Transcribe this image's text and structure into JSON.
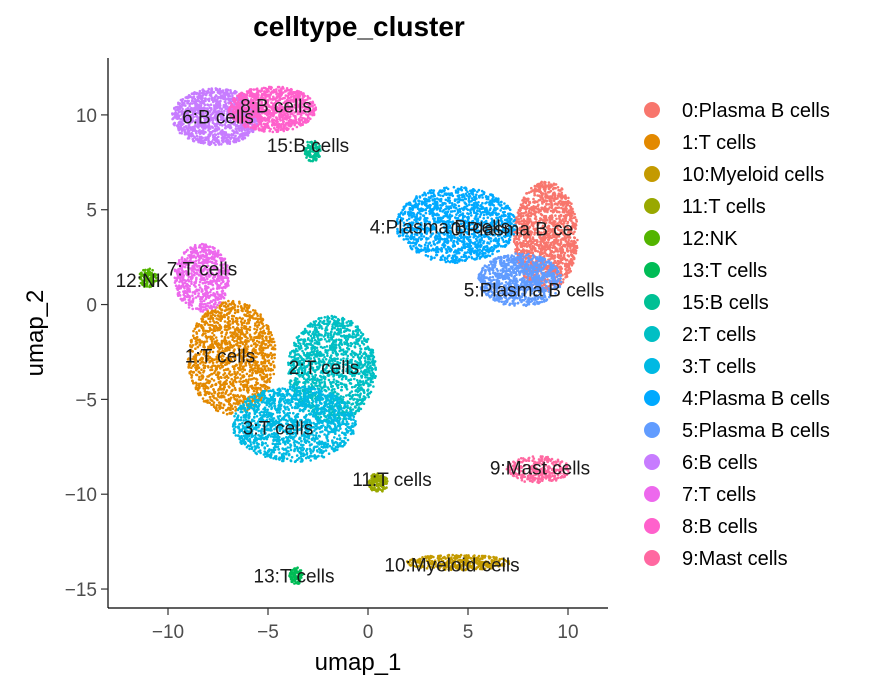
{
  "chart_data": {
    "type": "scatter",
    "title": "celltype_cluster",
    "xlabel": "umap_1",
    "ylabel": "umap_2",
    "xlim": [
      -13,
      12
    ],
    "ylim": [
      -16,
      13
    ],
    "x_ticks": [
      -10,
      -5,
      0,
      5,
      10
    ],
    "y_ticks": [
      10,
      5,
      0,
      -5,
      -10,
      -15
    ],
    "x_tick_labels": [
      "−10",
      "−5",
      "0",
      "5",
      "10"
    ],
    "y_tick_labels": [
      "10",
      "5",
      "0",
      "−5",
      "−10",
      "−15"
    ],
    "grid": false,
    "legend_position": "right",
    "series": [
      {
        "name": "0:Plasma B cells",
        "color": "#F8766D",
        "cx": 8.9,
        "cy": 3.6,
        "rx": 1.6,
        "ry": 2.9,
        "n": 1400,
        "label": "0:Plasma B ce",
        "lx": 7.2,
        "ly": 3.9
      },
      {
        "name": "1:T cells",
        "color": "#E38900",
        "cx": -6.8,
        "cy": -2.8,
        "rx": 2.2,
        "ry": 3.0,
        "n": 1400,
        "label": "1:T cells",
        "lx": -7.4,
        "ly": -2.8
      },
      {
        "name": "10:Myeloid cells",
        "color": "#C49A00",
        "cx": 4.5,
        "cy": -13.6,
        "rx": 2.6,
        "ry": 0.4,
        "n": 350,
        "label": "10:Myeloid cells",
        "lx": 4.2,
        "ly": -13.8
      },
      {
        "name": "11:T cells",
        "color": "#99A800",
        "cx": 0.5,
        "cy": -9.4,
        "rx": 0.5,
        "ry": 0.5,
        "n": 140,
        "label": "11:T cells",
        "lx": 1.2,
        "ly": -9.3
      },
      {
        "name": "12:NK",
        "color": "#53B400",
        "cx": -11.0,
        "cy": 1.4,
        "rx": 0.45,
        "ry": 0.5,
        "n": 120,
        "label": "12:NK",
        "lx": -11.3,
        "ly": 1.2
      },
      {
        "name": "13:T cells",
        "color": "#00BC56",
        "cx": -3.6,
        "cy": -14.3,
        "rx": 0.35,
        "ry": 0.45,
        "n": 90,
        "label": "13:T cells",
        "lx": -3.7,
        "ly": -14.4
      },
      {
        "name": "15:B cells",
        "color": "#00C094",
        "cx": -2.8,
        "cy": 8.1,
        "rx": 0.45,
        "ry": 0.55,
        "n": 110,
        "label": "15:B cells",
        "lx": -3.0,
        "ly": 8.3
      },
      {
        "name": "2:T cells",
        "color": "#00BFC4",
        "cx": -1.8,
        "cy": -3.4,
        "rx": 2.2,
        "ry": 2.8,
        "n": 1400,
        "label": "2:T cells",
        "lx": -2.2,
        "ly": -3.4
      },
      {
        "name": "3:T cells",
        "color": "#00B9E3",
        "cx": -3.7,
        "cy": -6.3,
        "rx": 3.1,
        "ry": 2.0,
        "n": 1400,
        "label": "3:T cells",
        "lx": -4.5,
        "ly": -6.6
      },
      {
        "name": "4:Plasma B cells",
        "color": "#00A9FF",
        "cx": 4.4,
        "cy": 4.2,
        "rx": 3.0,
        "ry": 2.0,
        "n": 1400,
        "label": "4:Plasma B cells",
        "lx": 3.6,
        "ly": 4.0
      },
      {
        "name": "5:Plasma B cells",
        "color": "#619CFF",
        "cx": 7.6,
        "cy": 1.3,
        "rx": 2.1,
        "ry": 1.4,
        "n": 900,
        "label": "5:Plasma B cells",
        "lx": 8.3,
        "ly": 0.7
      },
      {
        "name": "6:B cells",
        "color": "#C77CFF",
        "cx": -7.6,
        "cy": 9.9,
        "rx": 2.2,
        "ry": 1.5,
        "n": 1200,
        "label": "6:B cells",
        "lx": -7.5,
        "ly": 9.8
      },
      {
        "name": "7:T cells",
        "color": "#ED68ED",
        "cx": -8.3,
        "cy": 1.4,
        "rx": 1.4,
        "ry": 1.8,
        "n": 700,
        "label": "7:T cells",
        "lx": -8.3,
        "ly": 1.8
      },
      {
        "name": "8:B cells",
        "color": "#FF61CC",
        "cx": -4.8,
        "cy": 10.3,
        "rx": 2.2,
        "ry": 1.2,
        "n": 1000,
        "label": "8:B cells",
        "lx": -4.6,
        "ly": 10.4
      },
      {
        "name": "9:Mast cells",
        "color": "#FF68A1",
        "cx": 8.5,
        "cy": -8.7,
        "rx": 1.6,
        "ry": 0.7,
        "n": 300,
        "label": "9:Mast cells",
        "lx": 8.6,
        "ly": -8.7
      }
    ]
  }
}
